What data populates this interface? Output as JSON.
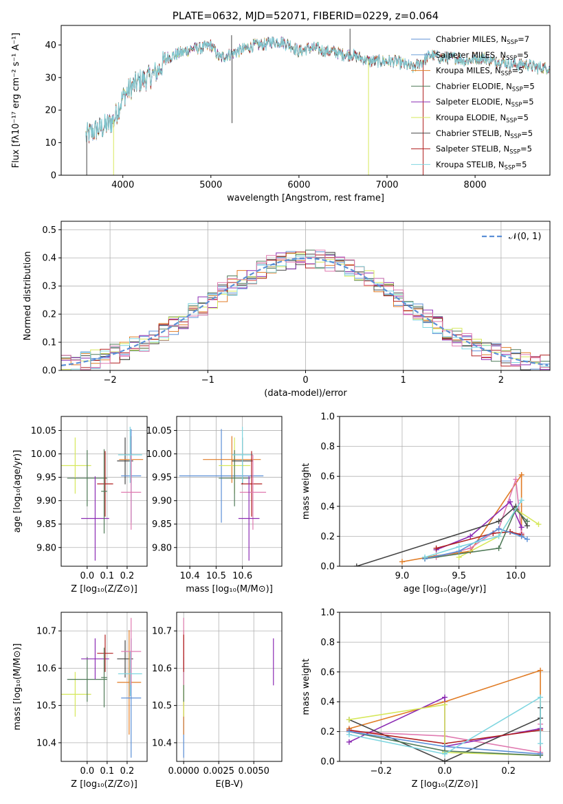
{
  "colors": {
    "chabrier_miles": "#5b8fd6",
    "salpeter_miles": "#6fa0d8",
    "kroupa_miles": "#e07b24",
    "chabrier_elodie": "#4f7a58",
    "salpeter_elodie": "#8b2bb3",
    "kroupa_elodie": "#d6e85a",
    "chabrier_stelib": "#444444",
    "salpeter_stelib": "#b01e1e",
    "kroupa_stelib": "#7fd6e0",
    "pink": "#e07ab0",
    "gaussian": "#5b8fd6"
  },
  "chart_data": [
    {
      "id": "spectrum",
      "type": "line",
      "title": "PLATE=0632, MJD=52071, FIBERID=0229, z=0.064",
      "xlabel": "wavelength [Angstrom, rest frame]",
      "ylabel": "Flux [fλ10⁻¹⁷ erg cm⁻² s⁻¹ A⁻¹]",
      "xlim": [
        3300,
        8850
      ],
      "ylim": [
        0,
        46
      ],
      "xticks": [
        4000,
        5000,
        6000,
        7000,
        8000
      ],
      "yticks": [
        0,
        10,
        20,
        30,
        40
      ],
      "grid": false,
      "legend_position": "top-right",
      "continuum": {
        "x": [
          3580,
          3700,
          3800,
          3900,
          4000,
          4100,
          4200,
          4300,
          4400,
          4500,
          4600,
          4700,
          4800,
          4900,
          5000,
          5100,
          5200,
          5300,
          5400,
          5500,
          5600,
          5700,
          5800,
          5900,
          6000,
          6100,
          6200,
          6300,
          6400,
          6500,
          6600,
          6700,
          6800,
          6900,
          7000,
          7100,
          7200,
          7300,
          7400,
          7500,
          7600,
          7700,
          7800,
          7900,
          8000,
          8100,
          8200,
          8300,
          8400,
          8500,
          8600,
          8700,
          8850
        ],
        "y": [
          12,
          14,
          15,
          17,
          24,
          27,
          29,
          30,
          32,
          36,
          37,
          38,
          39,
          39,
          40,
          36,
          37,
          38,
          39,
          40,
          40,
          41,
          41,
          40,
          38,
          39,
          39,
          38,
          38,
          37,
          37,
          36,
          35,
          35,
          35,
          35,
          34,
          33,
          35,
          37,
          36,
          36,
          36,
          35,
          36,
          36,
          35,
          35,
          34,
          34,
          34,
          33,
          33
        ]
      },
      "series": [
        {
          "name": "Chabrier MILES, N",
          "sub": "SSP",
          "suffix": "=7",
          "color": "chabrier_miles"
        },
        {
          "name": "Salpeter MILES, N",
          "sub": "SSP",
          "suffix": "=5",
          "color": "salpeter_miles"
        },
        {
          "name": "Kroupa MILES, N",
          "sub": "SSP",
          "suffix": "=5",
          "color": "kroupa_miles"
        },
        {
          "name": "Chabrier ELODIE, N",
          "sub": "SSP",
          "suffix": "=5",
          "color": "chabrier_elodie"
        },
        {
          "name": "Salpeter ELODIE, N",
          "sub": "SSP",
          "suffix": "=5",
          "color": "salpeter_elodie"
        },
        {
          "name": "Kroupa ELODIE, N",
          "sub": "SSP",
          "suffix": "=5",
          "color": "kroupa_elodie"
        },
        {
          "name": "Chabrier STELIB, N",
          "sub": "SSP",
          "suffix": "=5",
          "color": "chabrier_stelib"
        },
        {
          "name": "Salpeter STELIB, N",
          "sub": "SSP",
          "suffix": "=5",
          "color": "salpeter_stelib"
        },
        {
          "name": "Kroupa STELIB, N",
          "sub": "SSP",
          "suffix": "=5",
          "color": "kroupa_stelib"
        }
      ]
    },
    {
      "id": "residuals",
      "type": "line",
      "xlabel": "(data-model)/error",
      "ylabel": "Normed distribution",
      "xlim": [
        -2.5,
        2.5
      ],
      "ylim": [
        0,
        0.53
      ],
      "xticks": [
        -2,
        -1,
        0,
        1,
        2
      ],
      "yticks": [
        0.0,
        0.1,
        0.2,
        0.3,
        0.4,
        0.5
      ],
      "grid": true,
      "legend_position": "top-right",
      "legend_label": "𝒩(0, 1)",
      "gaussian": {
        "mean": 0,
        "sigma": 1,
        "color": "gaussian"
      },
      "bin_width": 0.1,
      "hist_colors": [
        "chabrier_miles",
        "kroupa_miles",
        "chabrier_elodie",
        "salpeter_elodie",
        "kroupa_elodie",
        "chabrier_stelib",
        "salpeter_stelib",
        "kroupa_stelib",
        "pink"
      ]
    },
    {
      "id": "age_vs_z",
      "type": "scatter",
      "xlabel": "Z [log₁₀(Z/Z⊙)]",
      "ylabel": "age  [log₁₀(age/yr)]",
      "xlim": [
        -0.13,
        0.3
      ],
      "ylim": [
        9.76,
        10.08
      ],
      "xticks": [
        0.0,
        0.1,
        0.2
      ],
      "yticks": [
        9.8,
        9.85,
        9.9,
        9.95,
        10.0,
        10.05
      ],
      "grid": true,
      "points": [
        {
          "x": -0.06,
          "y": 9.975,
          "xerr": 0.08,
          "yerr": 0.06,
          "color": "kroupa_elodie"
        },
        {
          "x": 0.0,
          "y": 9.948,
          "xerr": 0.1,
          "yerr": 0.06,
          "color": "chabrier_elodie"
        },
        {
          "x": 0.04,
          "y": 9.862,
          "xerr": 0.07,
          "yerr": 0.09,
          "color": "salpeter_elodie"
        },
        {
          "x": 0.09,
          "y": 9.936,
          "xerr": 0.04,
          "yerr": 0.07,
          "color": "salpeter_stelib"
        },
        {
          "x": 0.085,
          "y": 9.92,
          "xerr": 0.015,
          "yerr": 0.09,
          "color": "chabrier_elodie"
        },
        {
          "x": 0.19,
          "y": 9.985,
          "xerr": 0.04,
          "yerr": 0.05,
          "color": "chabrier_stelib"
        },
        {
          "x": 0.22,
          "y": 9.988,
          "xerr": 0.06,
          "yerr": 0.05,
          "color": "kroupa_miles"
        },
        {
          "x": 0.22,
          "y": 9.953,
          "xerr": 0.05,
          "yerr": 0.1,
          "color": "chabrier_miles"
        },
        {
          "x": 0.22,
          "y": 9.918,
          "xerr": 0.05,
          "yerr": 0.08,
          "color": "pink"
        },
        {
          "x": 0.215,
          "y": 9.998,
          "xerr": 0.06,
          "yerr": 0.06,
          "color": "kroupa_stelib"
        }
      ]
    },
    {
      "id": "age_vs_mass",
      "type": "scatter",
      "xlabel": "mass [log₁₀(M/M⊙)]",
      "ylabel": "",
      "xlim": [
        10.35,
        10.75
      ],
      "ylim": [
        9.76,
        10.08
      ],
      "xticks": [
        10.4,
        10.5,
        10.6
      ],
      "yticks": [
        9.8,
        9.85,
        9.9,
        9.95,
        10.0,
        10.05
      ],
      "grid": true,
      "points": [
        {
          "x": 10.52,
          "y": 9.953,
          "xerr": 0.16,
          "yerr": 0.1,
          "color": "chabrier_miles"
        },
        {
          "x": 10.56,
          "y": 9.988,
          "xerr": 0.11,
          "yerr": 0.05,
          "color": "kroupa_miles"
        },
        {
          "x": 10.57,
          "y": 9.975,
          "xerr": 0.06,
          "yerr": 0.06,
          "color": "kroupa_elodie"
        },
        {
          "x": 10.57,
          "y": 9.948,
          "xerr": 0.06,
          "yerr": 0.06,
          "color": "chabrier_elodie"
        },
        {
          "x": 10.6,
          "y": 9.985,
          "xerr": 0.04,
          "yerr": 0.05,
          "color": "chabrier_stelib"
        },
        {
          "x": 10.6,
          "y": 9.998,
          "xerr": 0.04,
          "yerr": 0.06,
          "color": "kroupa_stelib"
        },
        {
          "x": 10.635,
          "y": 9.936,
          "xerr": 0.04,
          "yerr": 0.07,
          "color": "salpeter_stelib"
        },
        {
          "x": 10.64,
          "y": 9.918,
          "xerr": 0.05,
          "yerr": 0.08,
          "color": "pink"
        },
        {
          "x": 10.625,
          "y": 9.862,
          "xerr": 0.04,
          "yerr": 0.09,
          "color": "salpeter_elodie"
        }
      ]
    },
    {
      "id": "weight_vs_age",
      "type": "line",
      "xlabel": "age  [log₁₀(age/yr)]",
      "ylabel": "mass weight",
      "xlim": [
        8.45,
        10.3
      ],
      "ylim": [
        0,
        1.0
      ],
      "xticks": [
        9.0,
        9.5,
        10.0
      ],
      "yticks": [
        0.0,
        0.2,
        0.4,
        0.6,
        0.8,
        1.0
      ],
      "grid": true,
      "series": [
        {
          "color": "kroupa_miles",
          "x": [
            9.0,
            9.3,
            9.6,
            10.05,
            10.05
          ],
          "y": [
            0.03,
            0.07,
            0.1,
            0.61,
            0.2
          ]
        },
        {
          "color": "pink",
          "x": [
            9.3,
            9.6,
            9.85,
            10.0,
            10.05
          ],
          "y": [
            0.06,
            0.12,
            0.25,
            0.58,
            0.22
          ]
        },
        {
          "color": "salpeter_elodie",
          "x": [
            9.3,
            9.6,
            9.95,
            10.05
          ],
          "y": [
            0.11,
            0.2,
            0.43,
            0.26
          ]
        },
        {
          "color": "chabrier_stelib",
          "x": [
            8.6,
            9.85,
            10.0,
            10.1
          ],
          "y": [
            0.0,
            0.3,
            0.4,
            0.27
          ]
        },
        {
          "color": "salpeter_stelib",
          "x": [
            9.3,
            9.8,
            9.95,
            10.05
          ],
          "y": [
            0.12,
            0.22,
            0.23,
            0.21
          ]
        },
        {
          "color": "kroupa_elodie",
          "x": [
            9.5,
            9.85,
            10.0,
            10.2
          ],
          "y": [
            0.06,
            0.2,
            0.38,
            0.28
          ]
        },
        {
          "color": "chabrier_elodie",
          "x": [
            9.2,
            9.85,
            10.0,
            10.1
          ],
          "y": [
            0.05,
            0.12,
            0.38,
            0.3
          ]
        },
        {
          "color": "chabrier_miles",
          "x": [
            9.2,
            9.5,
            9.85,
            10.05,
            10.1
          ],
          "y": [
            0.05,
            0.1,
            0.25,
            0.2,
            0.18
          ]
        },
        {
          "color": "kroupa_stelib",
          "x": [
            9.2,
            9.5,
            9.85,
            10.05
          ],
          "y": [
            0.06,
            0.13,
            0.2,
            0.44
          ]
        }
      ]
    },
    {
      "id": "mass_vs_z",
      "type": "scatter",
      "xlabel": "Z [log₁₀(Z/Z⊙)]",
      "ylabel": "mass [log₁₀(M/M⊙)]",
      "xlim": [
        -0.13,
        0.3
      ],
      "ylim": [
        10.35,
        10.75
      ],
      "xticks": [
        0.0,
        0.1,
        0.2
      ],
      "yticks": [
        10.4,
        10.5,
        10.6,
        10.7
      ],
      "grid": true,
      "points": [
        {
          "x": -0.06,
          "y": 10.53,
          "xerr": 0.08,
          "yerr": 0.06,
          "color": "kroupa_elodie"
        },
        {
          "x": 0.0,
          "y": 10.57,
          "xerr": 0.1,
          "yerr": 0.06,
          "color": "chabrier_elodie"
        },
        {
          "x": 0.04,
          "y": 10.625,
          "xerr": 0.07,
          "yerr": 0.055,
          "color": "salpeter_elodie"
        },
        {
          "x": 0.09,
          "y": 10.64,
          "xerr": 0.04,
          "yerr": 0.05,
          "color": "salpeter_stelib"
        },
        {
          "x": 0.085,
          "y": 10.575,
          "xerr": 0.015,
          "yerr": 0.08,
          "color": "chabrier_elodie"
        },
        {
          "x": 0.19,
          "y": 10.625,
          "xerr": 0.04,
          "yerr": 0.05,
          "color": "chabrier_stelib"
        },
        {
          "x": 0.21,
          "y": 10.562,
          "xerr": 0.06,
          "yerr": 0.14,
          "color": "kroupa_miles"
        },
        {
          "x": 0.22,
          "y": 10.52,
          "xerr": 0.05,
          "yerr": 0.16,
          "color": "chabrier_miles"
        },
        {
          "x": 0.22,
          "y": 10.645,
          "xerr": 0.05,
          "yerr": 0.09,
          "color": "pink"
        },
        {
          "x": 0.215,
          "y": 10.585,
          "xerr": 0.06,
          "yerr": 0.06,
          "color": "kroupa_stelib"
        }
      ]
    },
    {
      "id": "mass_vs_ebv",
      "type": "scatter",
      "xlabel": "E(B-V)",
      "ylabel": "",
      "xlim": [
        -0.0005,
        0.007
      ],
      "ylim": [
        10.35,
        10.75
      ],
      "xticks": [
        0.0,
        0.0025,
        0.005
      ],
      "xticklabels": [
        "0.0000",
        "0.0025",
        "0.0050"
      ],
      "yticks": [
        10.4,
        10.5,
        10.6,
        10.7
      ],
      "grid": true,
      "points": [
        {
          "x": 0.0,
          "y": 10.52,
          "yerr": 0.16,
          "color": "chabrier_miles"
        },
        {
          "x": 0.0,
          "y": 10.562,
          "yerr": 0.14,
          "color": "kroupa_miles"
        },
        {
          "x": 0.0,
          "y": 10.53,
          "yerr": 0.06,
          "color": "kroupa_elodie"
        },
        {
          "x": 0.0,
          "y": 10.57,
          "yerr": 0.06,
          "color": "chabrier_elodie"
        },
        {
          "x": 0.0,
          "y": 10.645,
          "yerr": 0.09,
          "color": "pink"
        },
        {
          "x": 0.0,
          "y": 10.64,
          "yerr": 0.05,
          "color": "salpeter_stelib"
        },
        {
          "x": 0.0064,
          "y": 10.617,
          "yerr": 0.063,
          "color": "salpeter_elodie"
        }
      ]
    },
    {
      "id": "weight_vs_z",
      "type": "line",
      "xlabel": "Z [log₁₀(Z/Z⊙)]",
      "ylabel": "mass weight",
      "xlim": [
        -0.33,
        0.33
      ],
      "ylim": [
        0,
        1.0
      ],
      "xticks": [
        -0.2,
        0.0,
        0.2
      ],
      "xticklabels": [
        "−0.2",
        "0.0",
        "0.2"
      ],
      "yticks": [
        0.0,
        0.2,
        0.4,
        0.6,
        0.8,
        1.0
      ],
      "grid": true,
      "series": [
        {
          "color": "kroupa_miles",
          "x": [
            -0.3,
            0.0,
            0.3,
            0.3
          ],
          "y": [
            0.22,
            0.4,
            0.61,
            0.05
          ]
        },
        {
          "color": "pink",
          "x": [
            -0.3,
            0.0,
            0.3,
            0.3
          ],
          "y": [
            0.2,
            0.17,
            0.06,
            0.25
          ]
        },
        {
          "color": "salpeter_elodie",
          "x": [
            -0.3,
            0.0,
            0.0,
            0.3
          ],
          "y": [
            0.13,
            0.43,
            0.1,
            0.22
          ]
        },
        {
          "color": "chabrier_stelib",
          "x": [
            -0.3,
            0.0,
            0.3,
            0.3
          ],
          "y": [
            0.28,
            0.0,
            0.29,
            0.36
          ]
        },
        {
          "color": "salpeter_stelib",
          "x": [
            -0.3,
            0.0,
            0.3
          ],
          "y": [
            0.21,
            0.12,
            0.21
          ]
        },
        {
          "color": "kroupa_elodie",
          "x": [
            -0.3,
            0.0,
            0.0,
            0.3
          ],
          "y": [
            0.28,
            0.38,
            0.06,
            0.04
          ]
        },
        {
          "color": "chabrier_elodie",
          "x": [
            -0.3,
            0.0,
            0.3
          ],
          "y": [
            0.2,
            0.07,
            0.04
          ]
        },
        {
          "color": "chabrier_miles",
          "x": [
            -0.3,
            0.0,
            0.3
          ],
          "y": [
            0.2,
            0.1,
            0.05
          ]
        },
        {
          "color": "kroupa_stelib",
          "x": [
            -0.3,
            0.0,
            0.3,
            0.3
          ],
          "y": [
            0.18,
            0.05,
            0.43,
            0.12
          ]
        }
      ]
    }
  ]
}
